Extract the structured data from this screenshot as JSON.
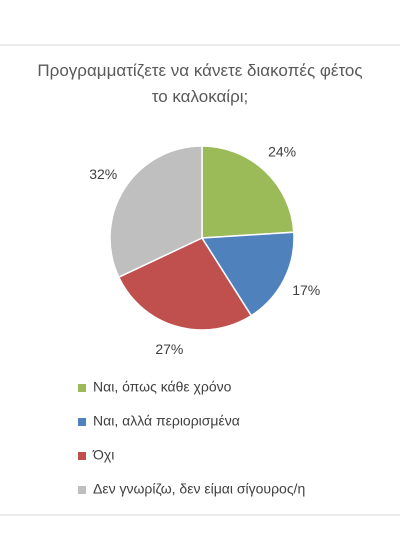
{
  "chart_data": {
    "type": "pie",
    "title": "Προγραμματίζετε να κάνετε διακοπές φέτος το καλοκαίρι;",
    "categories": [
      "Ναι, όπως κάθε χρόνο",
      "Ναι, αλλά περιορισμένα",
      "Όχι",
      "Δεν γνωρίζω, δεν είμαι σίγουρος/η"
    ],
    "values": [
      24,
      17,
      27,
      32
    ],
    "value_labels": [
      "24%",
      "17%",
      "27%",
      "32%"
    ],
    "colors": [
      "#9bbb59",
      "#4f81bd",
      "#c0504d",
      "#bfbfbf"
    ],
    "legend": "bottom"
  }
}
